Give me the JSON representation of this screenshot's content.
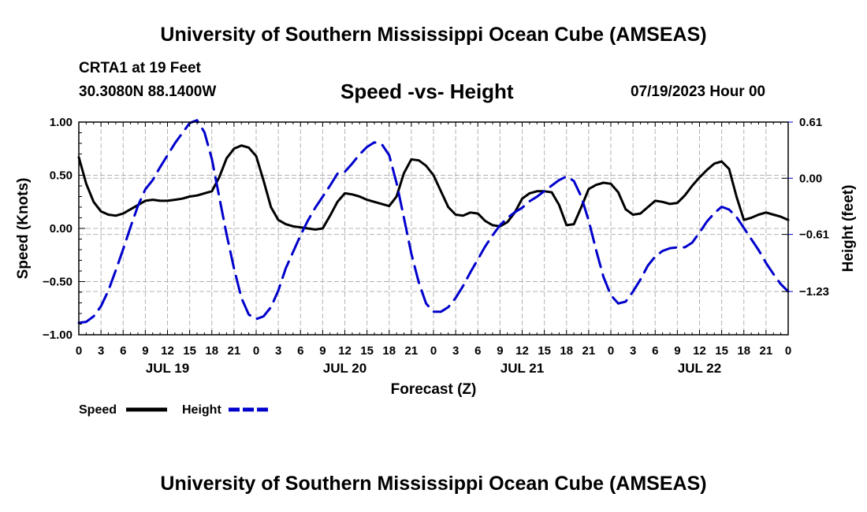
{
  "header": {
    "title": "University of Southern Mississippi Ocean Cube (AMSEAS)",
    "station": "CRTA1 at 19 Feet",
    "coordinates": "30.3080N  88.1400W",
    "subtitle": "Speed -vs- Height",
    "datetime": "07/19/2023 Hour 00"
  },
  "footer": {
    "title": "University of Southern Mississippi Ocean Cube (AMSEAS)"
  },
  "chart_data": {
    "type": "line",
    "title": "Speed -vs- Height",
    "xlabel": "Forecast (Z)",
    "ylabel": "Speed (Knots)",
    "y2label": "Height (feet)",
    "xlim": [
      0,
      96
    ],
    "ylim": [
      -1.0,
      1.0
    ],
    "y2lim": [
      -1.7,
      0.61
    ],
    "x_ticks": [
      0,
      3,
      6,
      9,
      12,
      15,
      18,
      21,
      24,
      27,
      30,
      33,
      36,
      39,
      42,
      45,
      48,
      51,
      54,
      57,
      60,
      63,
      66,
      69,
      72,
      75,
      78,
      81,
      84,
      87,
      90,
      93,
      96
    ],
    "x_tick_labels": [
      "0",
      "3",
      "6",
      "9",
      "12",
      "15",
      "18",
      "21",
      "0",
      "3",
      "6",
      "9",
      "12",
      "15",
      "18",
      "21",
      "0",
      "3",
      "6",
      "9",
      "12",
      "15",
      "18",
      "21",
      "0",
      "3",
      "6",
      "9",
      "12",
      "15",
      "18",
      "21",
      "0"
    ],
    "date_labels": [
      {
        "x": 12,
        "label": "JUL 19"
      },
      {
        "x": 36,
        "label": "JUL 20"
      },
      {
        "x": 60,
        "label": "JUL 21"
      },
      {
        "x": 84,
        "label": "JUL 22"
      }
    ],
    "y_ticks": [
      -1.0,
      -0.5,
      0.0,
      0.5,
      1.0
    ],
    "y_tick_labels": [
      "−1.00",
      "−0.50",
      "0.00",
      "0.50",
      "1.00"
    ],
    "y2_ticks": [
      0.61,
      0.0,
      -0.61,
      -1.23
    ],
    "y2_tick_labels": [
      "0.61",
      "0.00",
      "−0.61",
      "−1.23"
    ],
    "grid": true,
    "legend": [
      {
        "label": "Speed",
        "color": "#000000",
        "style": "solid"
      },
      {
        "label": "Height",
        "color": "#0000cc",
        "style": "dashed"
      }
    ],
    "series": [
      {
        "name": "Speed",
        "axis": "left",
        "color": "#000000",
        "style": "solid",
        "points": [
          [
            0,
            0.67
          ],
          [
            1,
            0.42
          ],
          [
            2,
            0.25
          ],
          [
            3,
            0.16
          ],
          [
            4,
            0.13
          ],
          [
            5,
            0.12
          ],
          [
            6,
            0.14
          ],
          [
            7,
            0.18
          ],
          [
            8,
            0.22
          ],
          [
            9,
            0.26
          ],
          [
            10,
            0.27
          ],
          [
            11,
            0.26
          ],
          [
            12,
            0.26
          ],
          [
            13,
            0.27
          ],
          [
            14,
            0.28
          ],
          [
            15,
            0.3
          ],
          [
            16,
            0.31
          ],
          [
            17,
            0.33
          ],
          [
            18,
            0.35
          ],
          [
            19,
            0.48
          ],
          [
            20,
            0.66
          ],
          [
            21,
            0.75
          ],
          [
            22,
            0.78
          ],
          [
            23,
            0.76
          ],
          [
            24,
            0.68
          ],
          [
            25,
            0.45
          ],
          [
            26,
            0.2
          ],
          [
            27,
            0.08
          ],
          [
            28,
            0.04
          ],
          [
            29,
            0.02
          ],
          [
            30,
            0.01
          ],
          [
            31,
            0.0
          ],
          [
            32,
            -0.01
          ],
          [
            33,
            0.0
          ],
          [
            34,
            0.12
          ],
          [
            35,
            0.25
          ],
          [
            36,
            0.33
          ],
          [
            37,
            0.32
          ],
          [
            38,
            0.3
          ],
          [
            39,
            0.27
          ],
          [
            40,
            0.25
          ],
          [
            41,
            0.23
          ],
          [
            42,
            0.21
          ],
          [
            43,
            0.3
          ],
          [
            44,
            0.52
          ],
          [
            45,
            0.65
          ],
          [
            46,
            0.64
          ],
          [
            47,
            0.59
          ],
          [
            48,
            0.5
          ],
          [
            49,
            0.35
          ],
          [
            50,
            0.2
          ],
          [
            51,
            0.13
          ],
          [
            52,
            0.12
          ],
          [
            53,
            0.15
          ],
          [
            54,
            0.14
          ],
          [
            55,
            0.07
          ],
          [
            56,
            0.03
          ],
          [
            57,
            0.02
          ],
          [
            58,
            0.06
          ],
          [
            59,
            0.15
          ],
          [
            60,
            0.28
          ],
          [
            61,
            0.33
          ],
          [
            62,
            0.35
          ],
          [
            63,
            0.35
          ],
          [
            64,
            0.34
          ],
          [
            65,
            0.22
          ],
          [
            66,
            0.03
          ],
          [
            67,
            0.04
          ],
          [
            68,
            0.2
          ],
          [
            69,
            0.37
          ],
          [
            70,
            0.41
          ],
          [
            71,
            0.43
          ],
          [
            72,
            0.42
          ],
          [
            73,
            0.34
          ],
          [
            74,
            0.18
          ],
          [
            75,
            0.13
          ],
          [
            76,
            0.14
          ],
          [
            77,
            0.2
          ],
          [
            78,
            0.26
          ],
          [
            79,
            0.25
          ],
          [
            80,
            0.23
          ],
          [
            81,
            0.24
          ],
          [
            82,
            0.31
          ],
          [
            83,
            0.4
          ],
          [
            84,
            0.48
          ],
          [
            85,
            0.55
          ],
          [
            86,
            0.61
          ],
          [
            87,
            0.63
          ],
          [
            88,
            0.56
          ],
          [
            89,
            0.3
          ],
          [
            90,
            0.08
          ],
          [
            91,
            0.1
          ],
          [
            92,
            0.13
          ],
          [
            93,
            0.15
          ],
          [
            94,
            0.13
          ],
          [
            95,
            0.11
          ],
          [
            96,
            0.08
          ]
        ]
      },
      {
        "name": "Height",
        "axis": "right",
        "color": "#0000cc",
        "style": "dashed",
        "points": [
          [
            0,
            -1.57
          ],
          [
            1,
            -1.56
          ],
          [
            2,
            -1.5
          ],
          [
            3,
            -1.39
          ],
          [
            4,
            -1.22
          ],
          [
            5,
            -1.0
          ],
          [
            6,
            -0.77
          ],
          [
            7,
            -0.53
          ],
          [
            8,
            -0.3
          ],
          [
            9,
            -0.12
          ],
          [
            10,
            -0.02
          ],
          [
            11,
            0.12
          ],
          [
            12,
            0.25
          ],
          [
            13,
            0.38
          ],
          [
            14,
            0.49
          ],
          [
            15,
            0.6
          ],
          [
            16,
            0.63
          ],
          [
            17,
            0.5
          ],
          [
            18,
            0.21
          ],
          [
            19,
            -0.2
          ],
          [
            20,
            -0.61
          ],
          [
            21,
            -0.98
          ],
          [
            22,
            -1.3
          ],
          [
            23,
            -1.48
          ],
          [
            24,
            -1.53
          ],
          [
            25,
            -1.5
          ],
          [
            26,
            -1.4
          ],
          [
            27,
            -1.22
          ],
          [
            28,
            -0.98
          ],
          [
            29,
            -0.8
          ],
          [
            30,
            -0.62
          ],
          [
            31,
            -0.46
          ],
          [
            32,
            -0.32
          ],
          [
            33,
            -0.2
          ],
          [
            34,
            -0.08
          ],
          [
            35,
            0.05
          ],
          [
            36,
            0.07
          ],
          [
            37,
            0.16
          ],
          [
            38,
            0.26
          ],
          [
            39,
            0.34
          ],
          [
            40,
            0.39
          ],
          [
            41,
            0.37
          ],
          [
            42,
            0.25
          ],
          [
            43,
            -0.05
          ],
          [
            44,
            -0.43
          ],
          [
            45,
            -0.82
          ],
          [
            46,
            -1.13
          ],
          [
            47,
            -1.36
          ],
          [
            48,
            -1.45
          ],
          [
            49,
            -1.45
          ],
          [
            50,
            -1.4
          ],
          [
            51,
            -1.3
          ],
          [
            52,
            -1.17
          ],
          [
            53,
            -1.02
          ],
          [
            54,
            -0.88
          ],
          [
            55,
            -0.74
          ],
          [
            56,
            -0.62
          ],
          [
            57,
            -0.51
          ],
          [
            58,
            -0.43
          ],
          [
            59,
            -0.37
          ],
          [
            60,
            -0.32
          ],
          [
            61,
            -0.25
          ],
          [
            62,
            -0.2
          ],
          [
            63,
            -0.14
          ],
          [
            64,
            -0.08
          ],
          [
            65,
            -0.02
          ],
          [
            66,
            0.02
          ],
          [
            67,
            -0.03
          ],
          [
            68,
            -0.2
          ],
          [
            69,
            -0.46
          ],
          [
            70,
            -0.78
          ],
          [
            71,
            -1.07
          ],
          [
            72,
            -1.27
          ],
          [
            73,
            -1.36
          ],
          [
            74,
            -1.34
          ],
          [
            75,
            -1.23
          ],
          [
            76,
            -1.1
          ],
          [
            77,
            -0.95
          ],
          [
            78,
            -0.85
          ],
          [
            79,
            -0.79
          ],
          [
            80,
            -0.76
          ],
          [
            81,
            -0.75
          ],
          [
            82,
            -0.75
          ],
          [
            83,
            -0.7
          ],
          [
            84,
            -0.59
          ],
          [
            85,
            -0.47
          ],
          [
            86,
            -0.38
          ],
          [
            87,
            -0.31
          ],
          [
            88,
            -0.34
          ],
          [
            89,
            -0.42
          ],
          [
            90,
            -0.54
          ],
          [
            91,
            -0.66
          ],
          [
            92,
            -0.78
          ],
          [
            93,
            -0.92
          ],
          [
            94,
            -1.04
          ],
          [
            95,
            -1.15
          ],
          [
            96,
            -1.23
          ]
        ]
      }
    ]
  }
}
